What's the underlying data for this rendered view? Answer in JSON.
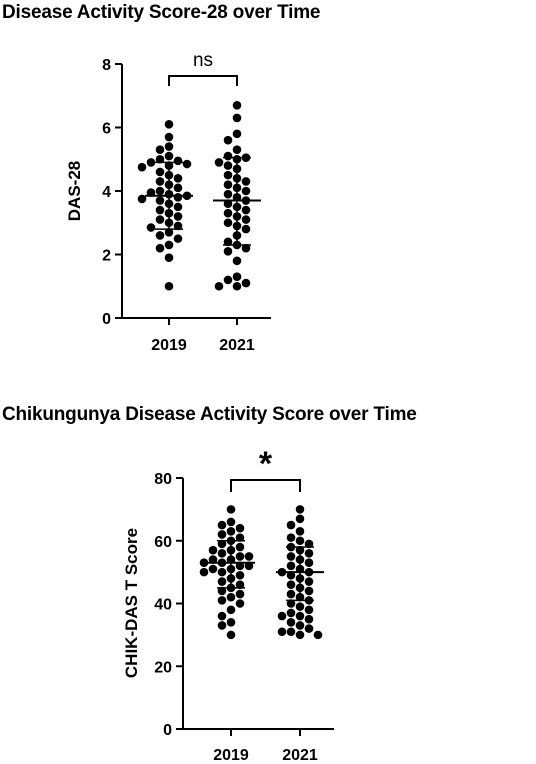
{
  "chart_data": [
    {
      "type": "scatter",
      "title": "Disease Activity Score-28 over Time",
      "ylabel": "DAS-28",
      "xlabel": "",
      "categories": [
        "2019",
        "2021"
      ],
      "ylim": [
        0,
        8
      ],
      "yticks": [
        0,
        2,
        4,
        6,
        8
      ],
      "ytick_labels": [
        "0",
        "2",
        "4",
        "6",
        "8"
      ],
      "significance": "ns",
      "summary": [
        {
          "category": "2019",
          "mean": 3.85,
          "sd_low": 2.8,
          "sd_high": 4.9
        },
        {
          "category": "2021",
          "mean": 3.7,
          "sd_low": 2.3,
          "sd_high": 5.05
        }
      ],
      "series": [
        {
          "category": "2019",
          "values": [
            6.1,
            5.7,
            5.4,
            5.3,
            5.1,
            5.0,
            4.95,
            4.9,
            4.85,
            4.8,
            4.75,
            4.6,
            4.5,
            4.4,
            4.3,
            4.2,
            4.1,
            4.0,
            3.95,
            3.9,
            3.85,
            3.8,
            3.75,
            3.7,
            3.6,
            3.5,
            3.4,
            3.3,
            3.2,
            3.1,
            3.0,
            2.9,
            2.85,
            2.7,
            2.6,
            2.5,
            2.3,
            2.2,
            1.9,
            1.0
          ]
        },
        {
          "category": "2021",
          "values": [
            6.7,
            6.3,
            5.8,
            5.6,
            5.3,
            5.1,
            5.05,
            5.0,
            4.9,
            4.8,
            4.7,
            4.5,
            4.4,
            4.3,
            4.2,
            4.1,
            4.0,
            3.9,
            3.8,
            3.7,
            3.6,
            3.5,
            3.4,
            3.3,
            3.2,
            3.1,
            3.0,
            2.9,
            2.8,
            2.6,
            2.4,
            2.3,
            2.2,
            2.1,
            1.8,
            1.3,
            1.2,
            1.1,
            1.0,
            1.0
          ]
        }
      ]
    },
    {
      "type": "scatter",
      "title": "Chikungunya Disease Activity Score over Time",
      "ylabel": "CHIK-DAS T Score",
      "xlabel": "",
      "categories": [
        "2019",
        "2021"
      ],
      "ylim": [
        0,
        80
      ],
      "yticks": [
        0,
        20,
        40,
        60,
        80
      ],
      "ytick_labels": [
        "0",
        "20",
        "40",
        "60",
        "80"
      ],
      "significance": "*",
      "summary": [
        {
          "category": "2019",
          "mean": 53,
          "sd_low": 45,
          "sd_high": 60
        },
        {
          "category": "2021",
          "mean": 50,
          "sd_low": 41,
          "sd_high": 58
        }
      ],
      "series": [
        {
          "category": "2019",
          "values": [
            70,
            66,
            65,
            64,
            63,
            62,
            61,
            60,
            59,
            58,
            57,
            57,
            56,
            55,
            55,
            54,
            54,
            53,
            53,
            52,
            52,
            51,
            51,
            50,
            50,
            49,
            48,
            47,
            46,
            45,
            44,
            43,
            42,
            41,
            40,
            38,
            36,
            34,
            33,
            30
          ]
        },
        {
          "category": "2021",
          "values": [
            70,
            67,
            65,
            63,
            61,
            60,
            59,
            58,
            57,
            56,
            55,
            54,
            53,
            52,
            51,
            50,
            50,
            49,
            48,
            47,
            46,
            45,
            44,
            43,
            42,
            41,
            40,
            39,
            38,
            37,
            36,
            35,
            34,
            33,
            32,
            31,
            31,
            30,
            30,
            36
          ]
        }
      ]
    }
  ]
}
